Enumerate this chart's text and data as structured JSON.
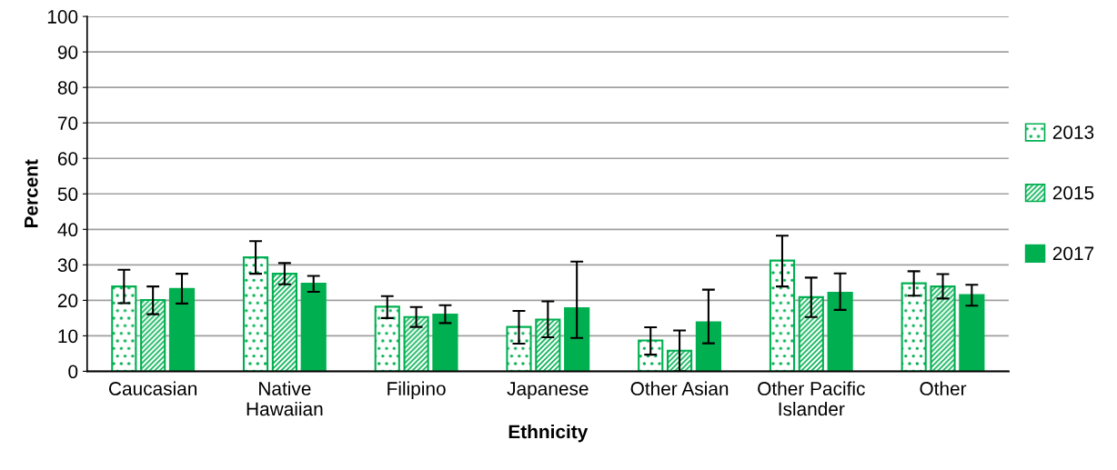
{
  "chart_data": {
    "type": "bar",
    "xlabel": "Ethnicity",
    "ylabel": "Percent",
    "categories": [
      "Caucasian",
      "Native\nHawaiian",
      "Filipino",
      "Japanese",
      "Other Asian",
      "Other Pacific\nIslander",
      "Other"
    ],
    "series": [
      {
        "name": "2013",
        "color": "#00b050",
        "values": [
          23.9,
          32.1,
          18.2,
          12.5,
          8.7,
          31.2,
          24.8
        ],
        "errors": [
          [
            19.2,
            28.6
          ],
          [
            27.5,
            36.7
          ],
          [
            15.0,
            21.2
          ],
          [
            7.8,
            17.0
          ],
          [
            4.7,
            12.4
          ],
          [
            23.9,
            38.2
          ],
          [
            21.3,
            28.2
          ]
        ]
      },
      {
        "name": "2015",
        "color": "#00b050",
        "values": [
          20.1,
          27.5,
          15.3,
          14.6,
          5.8,
          20.9,
          23.9
        ],
        "errors": [
          [
            16.1,
            23.9
          ],
          [
            24.5,
            30.5
          ],
          [
            12.5,
            18.1
          ],
          [
            9.6,
            19.7
          ],
          [
            0,
            11.5
          ],
          [
            15.3,
            26.4
          ],
          [
            20.5,
            27.4
          ]
        ]
      },
      {
        "name": "2017",
        "color": "#00b050",
        "values": [
          23.2,
          24.7,
          16.0,
          17.8,
          13.8,
          22.1,
          21.5
        ],
        "errors": [
          [
            19.1,
            27.5
          ],
          [
            22.4,
            26.9
          ],
          [
            13.6,
            18.6
          ],
          [
            9.4,
            30.9
          ],
          [
            7.9,
            23.0
          ],
          [
            17.3,
            27.6
          ],
          [
            18.5,
            24.4
          ]
        ]
      }
    ],
    "ylim": [
      0,
      100
    ],
    "yticks": [
      0,
      10,
      20,
      30,
      40,
      50,
      60,
      70,
      80,
      90,
      100
    ],
    "grid": "y",
    "legend": "right"
  }
}
